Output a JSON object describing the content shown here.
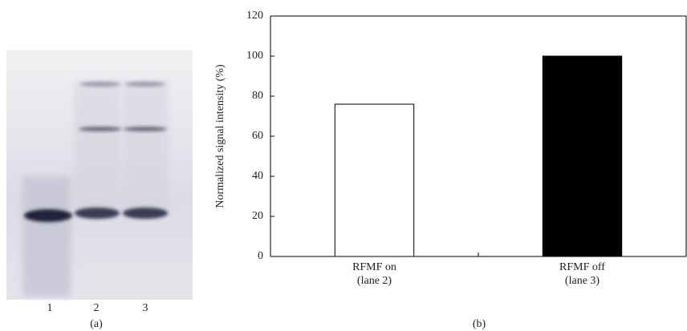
{
  "gel": {
    "lane_labels": [
      "1",
      "2",
      "3"
    ],
    "panel_label": "(a)"
  },
  "chart_data": {
    "type": "bar",
    "panel_label": "(b)",
    "y_label": "Normalized signal intensity (%)",
    "categories": [
      "RFMF on\n(lane 2)",
      "RFMF off\n(lane 3)"
    ],
    "values": [
      76,
      100
    ],
    "colors": [
      "#ffffff",
      "#000000"
    ],
    "ylim": [
      0,
      120
    ],
    "yticks": [
      0,
      20,
      40,
      60,
      80,
      100,
      120
    ],
    "grid": false
  }
}
